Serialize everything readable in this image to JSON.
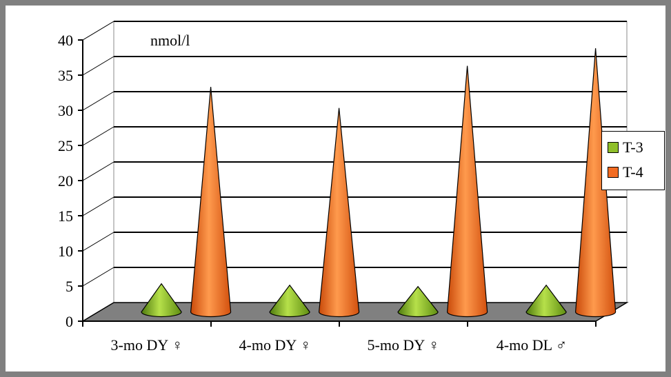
{
  "chart_data": {
    "type": "bar",
    "bar_shape": "cone",
    "unit_label": "nmol/l",
    "categories": [
      "3-mo DY ♀",
      "4-mo DY ♀",
      "5-mo DY ♀",
      "4-mo DL ♂"
    ],
    "series": [
      {
        "name": "T-3",
        "color": "#8fbf2a",
        "values": [
          4,
          3.8,
          3.6,
          3.8
        ]
      },
      {
        "name": "T-4",
        "color": "#f26b21",
        "values": [
          32,
          29,
          35,
          37.5
        ]
      }
    ],
    "ylim": [
      0,
      40
    ],
    "yticks": [
      "0",
      "5",
      "10",
      "15",
      "20",
      "25",
      "30",
      "35",
      "40"
    ],
    "grid": true,
    "legend_position": "right"
  }
}
